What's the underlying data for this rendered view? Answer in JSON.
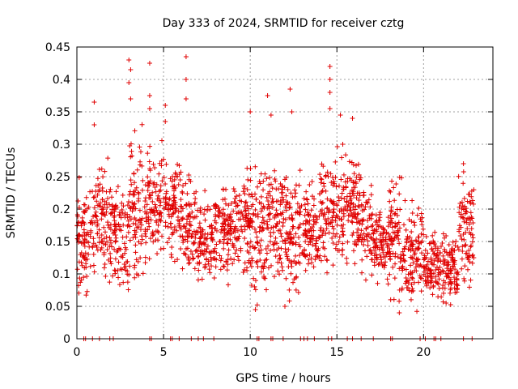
{
  "chart_data": {
    "type": "scatter",
    "title": "Day 333 of 2024, SRMTID for receiver cztg",
    "xlabel": "GPS time / hours",
    "ylabel": "SRMTID / TECUs",
    "xlim": [
      0,
      24
    ],
    "ylim": [
      0,
      0.45
    ],
    "x_ticks": [
      0,
      5,
      10,
      15,
      20
    ],
    "x_tick_labels": [
      "0",
      "5",
      "10",
      "15",
      "20"
    ],
    "y_ticks": [
      0,
      0.05,
      0.1,
      0.15,
      0.2,
      0.25,
      0.3,
      0.35,
      0.4,
      0.45
    ],
    "y_tick_labels": [
      "0",
      "0.05",
      "0.1",
      "0.15",
      "0.2",
      "0.25",
      "0.3",
      "0.35",
      "0.4",
      "0.45"
    ],
    "grid": true,
    "marker": "+",
    "color": "#e00000",
    "series_ranges": [
      {
        "x_start": 0.0,
        "x_end": 1.0,
        "y_low": 0.06,
        "y_high": 0.24
      },
      {
        "x_start": 1.0,
        "x_end": 2.0,
        "y_low": 0.08,
        "y_high": 0.28
      },
      {
        "x_start": 2.0,
        "x_end": 3.0,
        "y_low": 0.07,
        "y_high": 0.26
      },
      {
        "x_start": 3.0,
        "x_end": 4.0,
        "y_low": 0.09,
        "y_high": 0.32
      },
      {
        "x_start": 4.0,
        "x_end": 5.0,
        "y_low": 0.11,
        "y_high": 0.3
      },
      {
        "x_start": 5.0,
        "x_end": 6.0,
        "y_low": 0.12,
        "y_high": 0.29
      },
      {
        "x_start": 6.0,
        "x_end": 7.0,
        "y_low": 0.09,
        "y_high": 0.26
      },
      {
        "x_start": 7.0,
        "x_end": 8.0,
        "y_low": 0.08,
        "y_high": 0.22
      },
      {
        "x_start": 8.0,
        "x_end": 9.0,
        "y_low": 0.08,
        "y_high": 0.25
      },
      {
        "x_start": 9.0,
        "x_end": 10.0,
        "y_low": 0.1,
        "y_high": 0.26
      },
      {
        "x_start": 10.0,
        "x_end": 11.0,
        "y_low": 0.05,
        "y_high": 0.28
      },
      {
        "x_start": 11.0,
        "x_end": 12.0,
        "y_low": 0.09,
        "y_high": 0.27
      },
      {
        "x_start": 12.0,
        "x_end": 13.0,
        "y_low": 0.06,
        "y_high": 0.27
      },
      {
        "x_start": 13.0,
        "x_end": 14.0,
        "y_low": 0.09,
        "y_high": 0.24
      },
      {
        "x_start": 14.0,
        "x_end": 15.0,
        "y_low": 0.1,
        "y_high": 0.29
      },
      {
        "x_start": 15.0,
        "x_end": 16.0,
        "y_low": 0.1,
        "y_high": 0.31
      },
      {
        "x_start": 16.0,
        "x_end": 17.0,
        "y_low": 0.1,
        "y_high": 0.27
      },
      {
        "x_start": 17.0,
        "x_end": 18.0,
        "y_low": 0.08,
        "y_high": 0.22
      },
      {
        "x_start": 18.0,
        "x_end": 19.0,
        "y_low": 0.05,
        "y_high": 0.25
      },
      {
        "x_start": 19.0,
        "x_end": 20.0,
        "y_low": 0.05,
        "y_high": 0.22
      },
      {
        "x_start": 20.0,
        "x_end": 21.0,
        "y_low": 0.06,
        "y_high": 0.17
      },
      {
        "x_start": 21.0,
        "x_end": 22.0,
        "y_low": 0.05,
        "y_high": 0.17
      },
      {
        "x_start": 22.0,
        "x_end": 22.9,
        "y_low": 0.07,
        "y_high": 0.25
      }
    ],
    "spikes": [
      {
        "x": 1.0,
        "y": 0.365
      },
      {
        "x": 1.0,
        "y": 0.33
      },
      {
        "x": 3.0,
        "y": 0.43
      },
      {
        "x": 3.1,
        "y": 0.415
      },
      {
        "x": 3.0,
        "y": 0.395
      },
      {
        "x": 3.1,
        "y": 0.37
      },
      {
        "x": 4.2,
        "y": 0.425
      },
      {
        "x": 4.2,
        "y": 0.375
      },
      {
        "x": 4.2,
        "y": 0.355
      },
      {
        "x": 5.1,
        "y": 0.36
      },
      {
        "x": 5.1,
        "y": 0.335
      },
      {
        "x": 6.3,
        "y": 0.435
      },
      {
        "x": 6.3,
        "y": 0.4
      },
      {
        "x": 6.3,
        "y": 0.37
      },
      {
        "x": 10.0,
        "y": 0.35
      },
      {
        "x": 11.0,
        "y": 0.375
      },
      {
        "x": 11.2,
        "y": 0.345
      },
      {
        "x": 12.3,
        "y": 0.385
      },
      {
        "x": 12.4,
        "y": 0.35
      },
      {
        "x": 14.6,
        "y": 0.42
      },
      {
        "x": 14.6,
        "y": 0.4
      },
      {
        "x": 14.6,
        "y": 0.38
      },
      {
        "x": 14.6,
        "y": 0.355
      },
      {
        "x": 15.2,
        "y": 0.345
      },
      {
        "x": 15.9,
        "y": 0.34
      },
      {
        "x": 18.6,
        "y": 0.04
      },
      {
        "x": 10.3,
        "y": 0.045
      },
      {
        "x": 12.0,
        "y": 0.05
      },
      {
        "x": 21.3,
        "y": 0.055
      },
      {
        "x": 22.3,
        "y": 0.27
      }
    ],
    "zero_markers_x": [
      0.4,
      0.5,
      0.9,
      1.3,
      1.9,
      2.1,
      4.2,
      4.3,
      5.4,
      5.5,
      5.9,
      6.6,
      7.0,
      7.3,
      7.9,
      10.4,
      10.5,
      11.2,
      11.3,
      11.9,
      12.9,
      13.1,
      13.3,
      13.7,
      14.5,
      14.7,
      15.6,
      15.9,
      16.4,
      17.1,
      18.1,
      18.2,
      19.8,
      20.1,
      20.6,
      20.7,
      21.0,
      22.3,
      22.8
    ]
  }
}
